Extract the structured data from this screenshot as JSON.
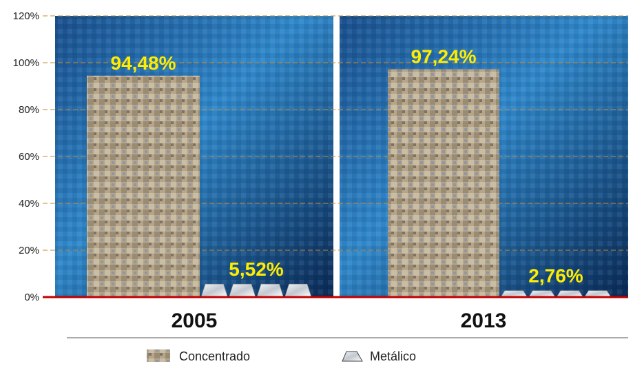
{
  "chart_data": {
    "type": "bar",
    "categories": [
      "2005",
      "2013"
    ],
    "series": [
      {
        "name": "Concentrado",
        "values": [
          94.48,
          97.24
        ],
        "labels": [
          "94,48%",
          "97,24%"
        ]
      },
      {
        "name": "Metálico",
        "values": [
          5.52,
          2.76
        ],
        "labels": [
          "5,52%",
          "2,76%"
        ]
      }
    ],
    "ylim": [
      0,
      120
    ],
    "yticks": [
      0,
      20,
      40,
      60,
      80,
      100,
      120
    ],
    "ytick_labels": [
      "0%",
      "20%",
      "40%",
      "60%",
      "80%",
      "100%",
      "120%"
    ],
    "grid": true,
    "legend_position": "bottom",
    "colors": {
      "grid": "#c98a2c",
      "baseline": "#c00000",
      "data_label": "#ffed00",
      "background_dark": "#0a2a55",
      "background_light": "#2f86c8",
      "concentrado": "#b5a58a",
      "metalico": "#d9dde3"
    }
  }
}
